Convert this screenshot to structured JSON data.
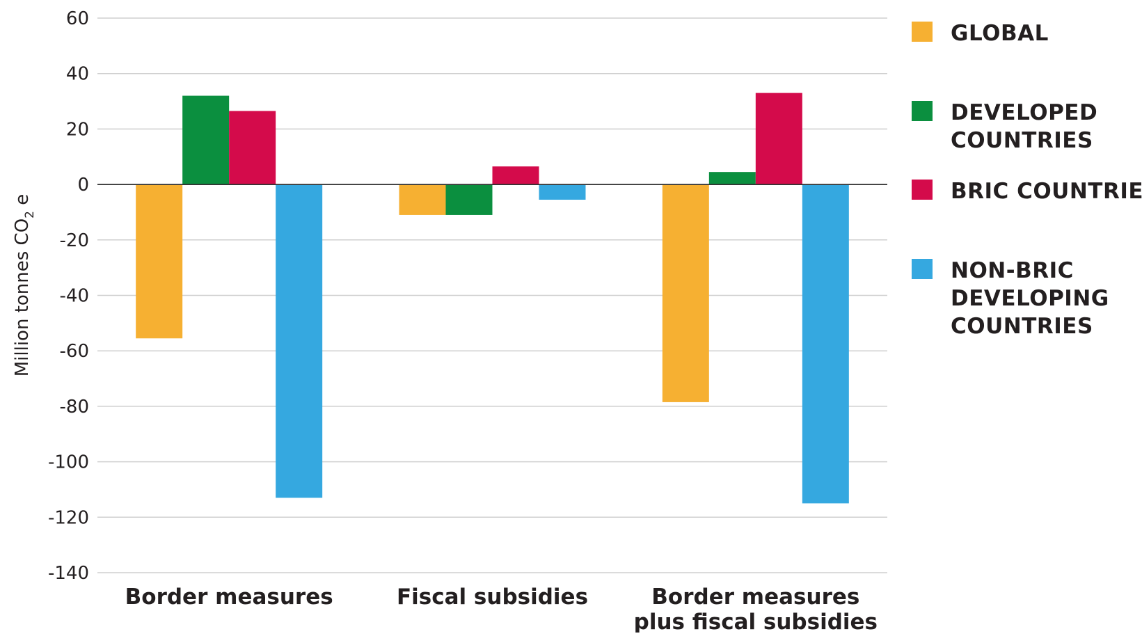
{
  "chart_data": {
    "type": "bar",
    "categories": [
      [
        "Border measures"
      ],
      [
        "Fiscal subsidies"
      ],
      [
        "Border measures",
        "plus fiscal subsidies"
      ]
    ],
    "series": [
      {
        "name": "GLOBAL",
        "name_lines": [
          "GLOBAL"
        ],
        "color": "#f6b032",
        "values": [
          -55.5,
          -11,
          -78.5
        ]
      },
      {
        "name": "DEVELOPED COUNTRIES",
        "name_lines": [
          "DEVELOPED",
          "COUNTRIES"
        ],
        "color": "#0b8f3f",
        "values": [
          32,
          -11,
          4.5
        ]
      },
      {
        "name": "BRIC COUNTRIES",
        "name_lines": [
          "BRIC COUNTRIES"
        ],
        "color": "#d40b4b",
        "values": [
          26.5,
          6.5,
          33
        ]
      },
      {
        "name": "NON-BRIC DEVELOPING COUNTRIES",
        "name_lines": [
          "NON-BRIC",
          "DEVELOPING",
          "COUNTRIES"
        ],
        "color": "#35a8e0",
        "values": [
          -113,
          -5.5,
          -115
        ]
      }
    ],
    "ylabel": {
      "main": "Million tonnes CO",
      "sub": "2",
      "suffix": " e"
    },
    "ylim": [
      -140,
      60
    ],
    "yticks": [
      60,
      40,
      20,
      0,
      -20,
      -40,
      -60,
      -80,
      -100,
      -120,
      -140
    ],
    "grid": true,
    "legend_position": "right"
  }
}
